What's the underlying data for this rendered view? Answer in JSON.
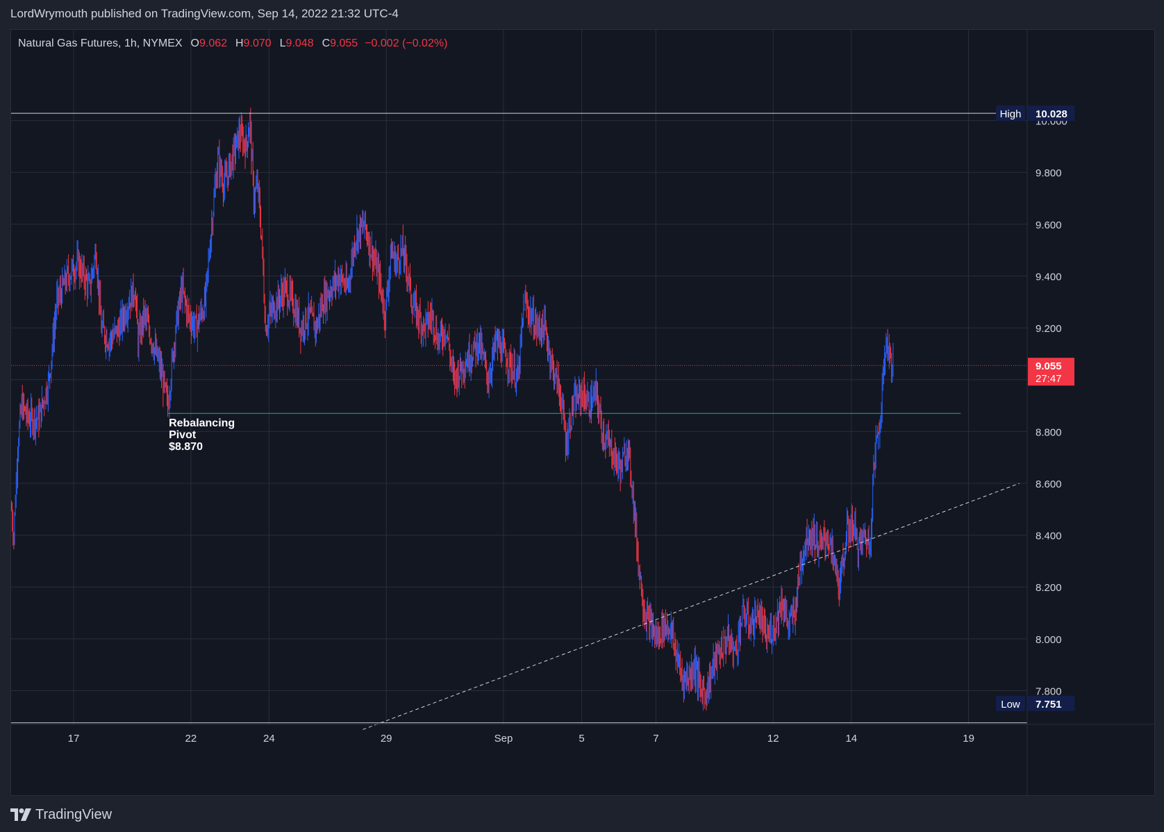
{
  "header": {
    "publisher_line": "LordWrymouth published on TradingView.com, Sep 14, 2022 21:32 UTC-4"
  },
  "legend": {
    "symbol": "Natural Gas Futures, 1h, NYMEX",
    "o_label": "O",
    "o_value": "9.062",
    "h_label": "H",
    "h_value": "9.070",
    "l_label": "L",
    "l_value": "9.048",
    "c_label": "C",
    "c_value": "9.055",
    "change": "−0.002 (−0.02%)"
  },
  "footer": {
    "brand": "TradingView"
  },
  "colors": {
    "background": "#131722",
    "up": "#2962ff",
    "down": "#f23645",
    "grid": "#2a2e39",
    "pivot_line": "#26a69a",
    "price_label_bg": "#f23645",
    "badge_bg": "#131f4a"
  },
  "chart_data": {
    "type": "ohlc",
    "title": "Natural Gas Futures, 1h, NYMEX",
    "ylim": [
      7.67,
      10.35
    ],
    "y_ticks": [
      "10.000",
      "9.800",
      "9.600",
      "9.400",
      "9.200",
      "9.000",
      "8.800",
      "8.600",
      "8.400",
      "8.200",
      "8.000",
      "7.800"
    ],
    "y_tick_values": [
      10.0,
      9.8,
      9.6,
      9.4,
      9.2,
      9.0,
      8.8,
      8.6,
      8.4,
      8.2,
      8.0,
      7.8
    ],
    "x_ticks": [
      "17",
      "22",
      "24",
      "29",
      "Sep",
      "5",
      "7",
      "12",
      "14",
      "19"
    ],
    "x_tick_bars": [
      80,
      230,
      330,
      480,
      630,
      730,
      825,
      975,
      1075,
      1225
    ],
    "total_bars": 1300,
    "current_price": "9.055",
    "current_price_value": 9.055,
    "countdown": "27:47",
    "high": {
      "label": "High",
      "value": "10.028",
      "y": 10.028
    },
    "low": {
      "label": "Low",
      "value": "7.751",
      "y": 7.751
    },
    "pivot": {
      "label_line1": "Rebalancing",
      "label_line2": "Pivot",
      "label_line3": "$8.870",
      "y": 8.87,
      "bar_start": 200,
      "bar_end": 1215
    },
    "trendline": {
      "bar1": 450,
      "y1": 7.65,
      "bar2": 1290,
      "y2": 8.6
    },
    "anchors": [
      [
        0,
        8.5
      ],
      [
        3,
        8.4
      ],
      [
        8,
        8.75
      ],
      [
        13,
        8.9
      ],
      [
        22,
        8.85
      ],
      [
        35,
        8.85
      ],
      [
        48,
        9.0
      ],
      [
        58,
        9.3
      ],
      [
        72,
        9.4
      ],
      [
        85,
        9.45
      ],
      [
        100,
        9.35
      ],
      [
        108,
        9.5
      ],
      [
        115,
        9.2
      ],
      [
        125,
        9.15
      ],
      [
        138,
        9.2
      ],
      [
        150,
        9.3
      ],
      [
        158,
        9.35
      ],
      [
        162,
        9.15
      ],
      [
        170,
        9.25
      ],
      [
        180,
        9.15
      ],
      [
        190,
        9.05
      ],
      [
        200,
        8.9
      ],
      [
        210,
        9.2
      ],
      [
        218,
        9.35
      ],
      [
        226,
        9.25
      ],
      [
        236,
        9.2
      ],
      [
        248,
        9.3
      ],
      [
        256,
        9.6
      ],
      [
        264,
        9.85
      ],
      [
        272,
        9.75
      ],
      [
        282,
        9.85
      ],
      [
        292,
        9.95
      ],
      [
        300,
        9.9
      ],
      [
        305,
        10.0
      ],
      [
        310,
        9.7
      ],
      [
        315,
        9.75
      ],
      [
        320,
        9.55
      ],
      [
        325,
        9.2
      ],
      [
        330,
        9.25
      ],
      [
        340,
        9.3
      ],
      [
        350,
        9.35
      ],
      [
        360,
        9.3
      ],
      [
        370,
        9.2
      ],
      [
        380,
        9.25
      ],
      [
        390,
        9.2
      ],
      [
        398,
        9.3
      ],
      [
        408,
        9.35
      ],
      [
        420,
        9.4
      ],
      [
        430,
        9.35
      ],
      [
        440,
        9.55
      ],
      [
        452,
        9.6
      ],
      [
        460,
        9.5
      ],
      [
        470,
        9.4
      ],
      [
        478,
        9.25
      ],
      [
        486,
        9.5
      ],
      [
        492,
        9.45
      ],
      [
        500,
        9.5
      ],
      [
        508,
        9.4
      ],
      [
        512,
        9.3
      ],
      [
        520,
        9.25
      ],
      [
        528,
        9.2
      ],
      [
        538,
        9.25
      ],
      [
        546,
        9.15
      ],
      [
        556,
        9.2
      ],
      [
        566,
        9.0
      ],
      [
        576,
        9.05
      ],
      [
        588,
        9.1
      ],
      [
        598,
        9.15
      ],
      [
        610,
        9.0
      ],
      [
        620,
        9.15
      ],
      [
        630,
        9.1
      ],
      [
        640,
        9.05
      ],
      [
        648,
        9.0
      ],
      [
        656,
        9.3
      ],
      [
        664,
        9.25
      ],
      [
        672,
        9.2
      ],
      [
        682,
        9.2
      ],
      [
        692,
        9.05
      ],
      [
        702,
        8.95
      ],
      [
        710,
        8.75
      ],
      [
        718,
        8.9
      ],
      [
        730,
        8.95
      ],
      [
        740,
        8.9
      ],
      [
        748,
        8.95
      ],
      [
        756,
        8.8
      ],
      [
        764,
        8.75
      ],
      [
        772,
        8.7
      ],
      [
        780,
        8.65
      ],
      [
        788,
        8.75
      ],
      [
        794,
        8.6
      ],
      [
        802,
        8.3
      ],
      [
        810,
        8.1
      ],
      [
        818,
        8.05
      ],
      [
        826,
        8.0
      ],
      [
        834,
        8.05
      ],
      [
        842,
        8.05
      ],
      [
        850,
        7.95
      ],
      [
        858,
        7.85
      ],
      [
        866,
        7.85
      ],
      [
        874,
        7.9
      ],
      [
        882,
        7.8
      ],
      [
        890,
        7.8
      ],
      [
        898,
        7.9
      ],
      [
        906,
        7.95
      ],
      [
        916,
        8.0
      ],
      [
        926,
        7.95
      ],
      [
        936,
        8.1
      ],
      [
        946,
        8.05
      ],
      [
        956,
        8.1
      ],
      [
        966,
        8.0
      ],
      [
        976,
        8.05
      ],
      [
        986,
        8.15
      ],
      [
        994,
        8.05
      ],
      [
        1002,
        8.1
      ],
      [
        1010,
        8.3
      ],
      [
        1018,
        8.4
      ],
      [
        1026,
        8.4
      ],
      [
        1034,
        8.35
      ],
      [
        1044,
        8.4
      ],
      [
        1052,
        8.3
      ],
      [
        1060,
        8.2
      ],
      [
        1068,
        8.4
      ],
      [
        1076,
        8.45
      ],
      [
        1084,
        8.35
      ],
      [
        1092,
        8.4
      ],
      [
        1098,
        8.35
      ],
      [
        1103,
        8.65
      ],
      [
        1108,
        8.8
      ],
      [
        1112,
        8.85
      ],
      [
        1116,
        9.05
      ],
      [
        1119,
        9.15
      ],
      [
        1123,
        9.1
      ],
      [
        1128,
        9.06
      ]
    ]
  }
}
